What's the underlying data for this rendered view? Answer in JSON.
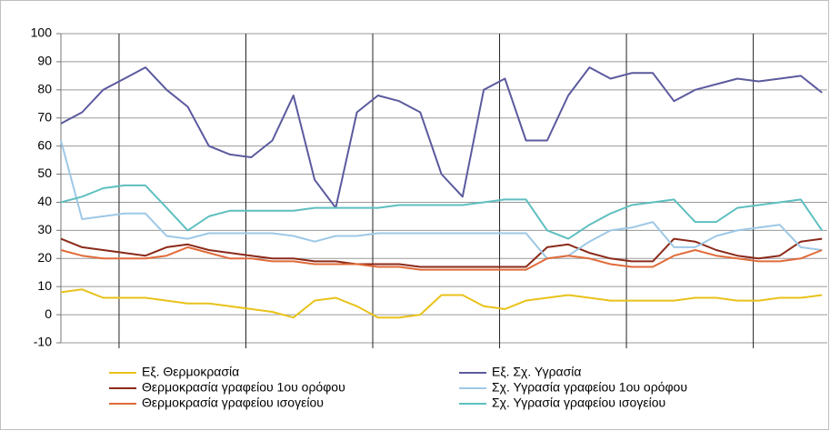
{
  "chart_data": {
    "type": "line",
    "x": [
      0,
      4,
      8,
      12,
      16,
      20,
      24,
      28,
      32,
      36,
      40,
      44,
      48,
      52,
      56,
      60,
      64,
      68,
      72,
      76,
      80,
      84,
      88,
      92,
      96,
      100,
      104,
      108,
      112,
      116,
      120,
      124,
      128,
      132,
      136,
      140,
      144
    ],
    "xlim": [
      0,
      145
    ],
    "xticks": [
      11,
      35,
      59,
      83,
      107,
      131
    ],
    "ylim": [
      -10,
      100
    ],
    "yticks": [
      -10,
      0,
      10,
      20,
      30,
      40,
      50,
      60,
      70,
      80,
      90,
      100
    ],
    "grid": true,
    "legend": "bottom",
    "series": [
      {
        "name": "Εξ. Θερμοκρασία",
        "color": "#e8c21a",
        "values": [
          8,
          9,
          6,
          6,
          6,
          5,
          4,
          4,
          3,
          2,
          1,
          -1,
          5,
          6,
          3,
          -1,
          -1,
          0,
          7,
          7,
          3,
          2,
          5,
          6,
          7,
          6,
          5,
          5,
          5,
          5,
          6,
          6,
          5,
          5,
          6,
          6,
          7
        ]
      },
      {
        "name": "Εξ. Σχ. Υγρασία",
        "color": "#5b5a9e",
        "values": [
          68,
          72,
          80,
          84,
          88,
          80,
          74,
          60,
          57,
          56,
          62,
          78,
          48,
          38,
          72,
          78,
          76,
          72,
          50,
          42,
          80,
          84,
          62,
          62,
          78,
          88,
          84,
          86,
          86,
          76,
          80,
          82,
          84,
          83,
          84,
          85,
          79
        ]
      },
      {
        "name": "Θερμοκρασία γραφείου 1ου ορόφου",
        "color": "#8b2a1a",
        "values": [
          27,
          24,
          23,
          22,
          21,
          24,
          25,
          23,
          22,
          21,
          20,
          20,
          19,
          19,
          18,
          18,
          18,
          17,
          17,
          17,
          17,
          17,
          17,
          24,
          25,
          22,
          20,
          19,
          19,
          27,
          26,
          23,
          21,
          20,
          21,
          26,
          27
        ]
      },
      {
        "name": "Σχ. Υγρασία γραφείου 1ου ορόφου",
        "color": "#9ec8e6",
        "values": [
          62,
          34,
          35,
          36,
          36,
          28,
          27,
          29,
          29,
          29,
          29,
          28,
          26,
          28,
          28,
          29,
          29,
          29,
          29,
          29,
          29,
          29,
          29,
          20,
          21,
          26,
          30,
          31,
          33,
          24,
          24,
          28,
          30,
          31,
          32,
          24,
          23
        ]
      },
      {
        "name": "Θερμοκρασία γραφείου ισογείου",
        "color": "#e06b3a",
        "values": [
          23,
          21,
          20,
          20,
          20,
          21,
          24,
          22,
          20,
          20,
          19,
          19,
          18,
          18,
          18,
          17,
          17,
          16,
          16,
          16,
          16,
          16,
          16,
          20,
          21,
          20,
          18,
          17,
          17,
          21,
          23,
          21,
          20,
          19,
          19,
          20,
          23
        ]
      },
      {
        "name": "Σχ. Υγρασία γραφείου ισογείου",
        "color": "#5fbfbf",
        "values": [
          40,
          42,
          45,
          46,
          46,
          38,
          30,
          35,
          37,
          37,
          37,
          37,
          38,
          38,
          38,
          38,
          39,
          39,
          39,
          39,
          40,
          41,
          41,
          30,
          27,
          32,
          36,
          39,
          40,
          41,
          33,
          33,
          38,
          39,
          40,
          41,
          30
        ]
      }
    ]
  }
}
